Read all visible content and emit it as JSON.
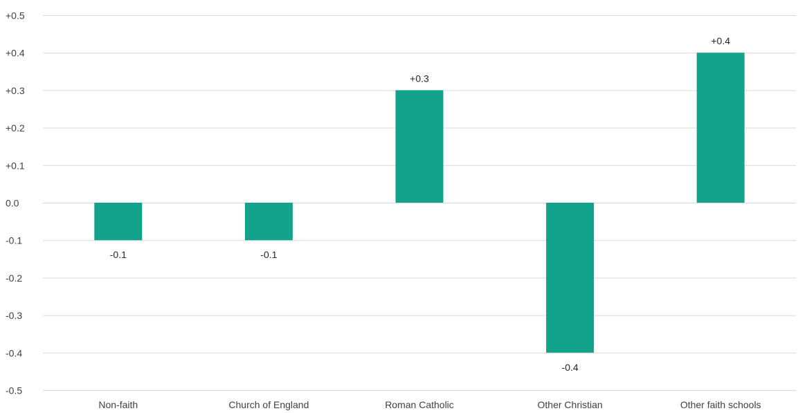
{
  "chart_data": {
    "type": "bar",
    "title": "",
    "xlabel": "",
    "ylabel": "",
    "categories": [
      "Non-faith",
      "Church of England",
      "Roman Catholic",
      "Other Christian",
      "Other faith schools"
    ],
    "values": [
      -0.1,
      -0.1,
      0.3,
      -0.4,
      0.4
    ],
    "data_labels": [
      "-0.1",
      "-0.1",
      "+0.3",
      "-0.4",
      "+0.4"
    ],
    "ylim": [
      -0.5,
      0.5
    ],
    "yticks": [
      0.5,
      0.4,
      0.3,
      0.2,
      0.1,
      0.0,
      -0.1,
      -0.2,
      -0.3,
      -0.4,
      -0.5
    ],
    "ytick_labels": [
      "+0.5",
      "+0.4",
      "+0.3",
      "+0.2",
      "+0.1",
      "0.0",
      "-0.1",
      "-0.2",
      "-0.3",
      "-0.4",
      "-0.5"
    ],
    "grid": true,
    "legend": "none",
    "bar_color": "#13a28a",
    "grid_color": "#d9d9d9"
  }
}
